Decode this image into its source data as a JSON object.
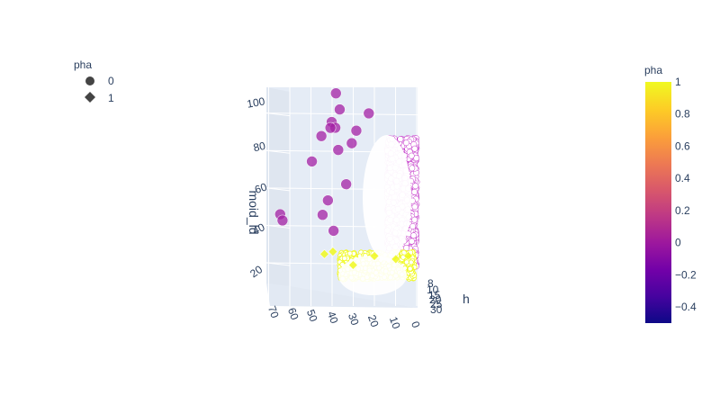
{
  "chart_data": {
    "type": "scatter",
    "mode": "3d",
    "axis_titles": {
      "z": "moid_ld",
      "x": "h"
    },
    "z_ticks": [
      "20",
      "40",
      "60",
      "80",
      "100"
    ],
    "y_ticks": [
      "0",
      "10",
      "20",
      "30",
      "40",
      "50",
      "60",
      "70"
    ],
    "x_ticks": [
      "8",
      "10",
      "15",
      "20",
      "25",
      "30"
    ],
    "legend": {
      "title": "pha",
      "placement": "top-left",
      "items": [
        {
          "label": "0",
          "symbol": "circle"
        },
        {
          "label": "1",
          "symbol": "diamond"
        }
      ]
    },
    "colorbar": {
      "title": "pha",
      "colorscale": "plasma",
      "range": [
        -0.5,
        1
      ],
      "ticks": [
        "1",
        "0.8",
        "0.6",
        "0.4",
        "0.2",
        "0",
        "−0.2",
        "−0.4"
      ],
      "tick_values": [
        1,
        0.8,
        0.6,
        0.4,
        0.2,
        0,
        -0.2,
        -0.4
      ]
    },
    "series": [
      {
        "name": "0",
        "color": "#a421a5",
        "points": [
          [
            3,
            39,
            105
          ],
          [
            6,
            37,
            97
          ],
          [
            7,
            23,
            95
          ],
          [
            19,
            40,
            94
          ],
          [
            23,
            38,
            92
          ],
          [
            14,
            65,
            42
          ],
          [
            12,
            64,
            38
          ],
          [
            22,
            28,
            90
          ],
          [
            13,
            41,
            89
          ],
          [
            18,
            45,
            86
          ],
          [
            25,
            30,
            84
          ],
          [
            17,
            37,
            78
          ],
          [
            11,
            50,
            70
          ],
          [
            20,
            33,
            60
          ],
          [
            16,
            42,
            50
          ],
          [
            9,
            45,
            40
          ],
          [
            5,
            40,
            30
          ]
        ]
      },
      {
        "name": "1",
        "color": "#f0f921",
        "points": [
          [
            10,
            40,
            20
          ],
          [
            12,
            20,
            18
          ],
          [
            8,
            10,
            15
          ],
          [
            15,
            30,
            14
          ],
          [
            11,
            44,
            19
          ],
          [
            9,
            4,
            17
          ]
        ]
      }
    ]
  }
}
